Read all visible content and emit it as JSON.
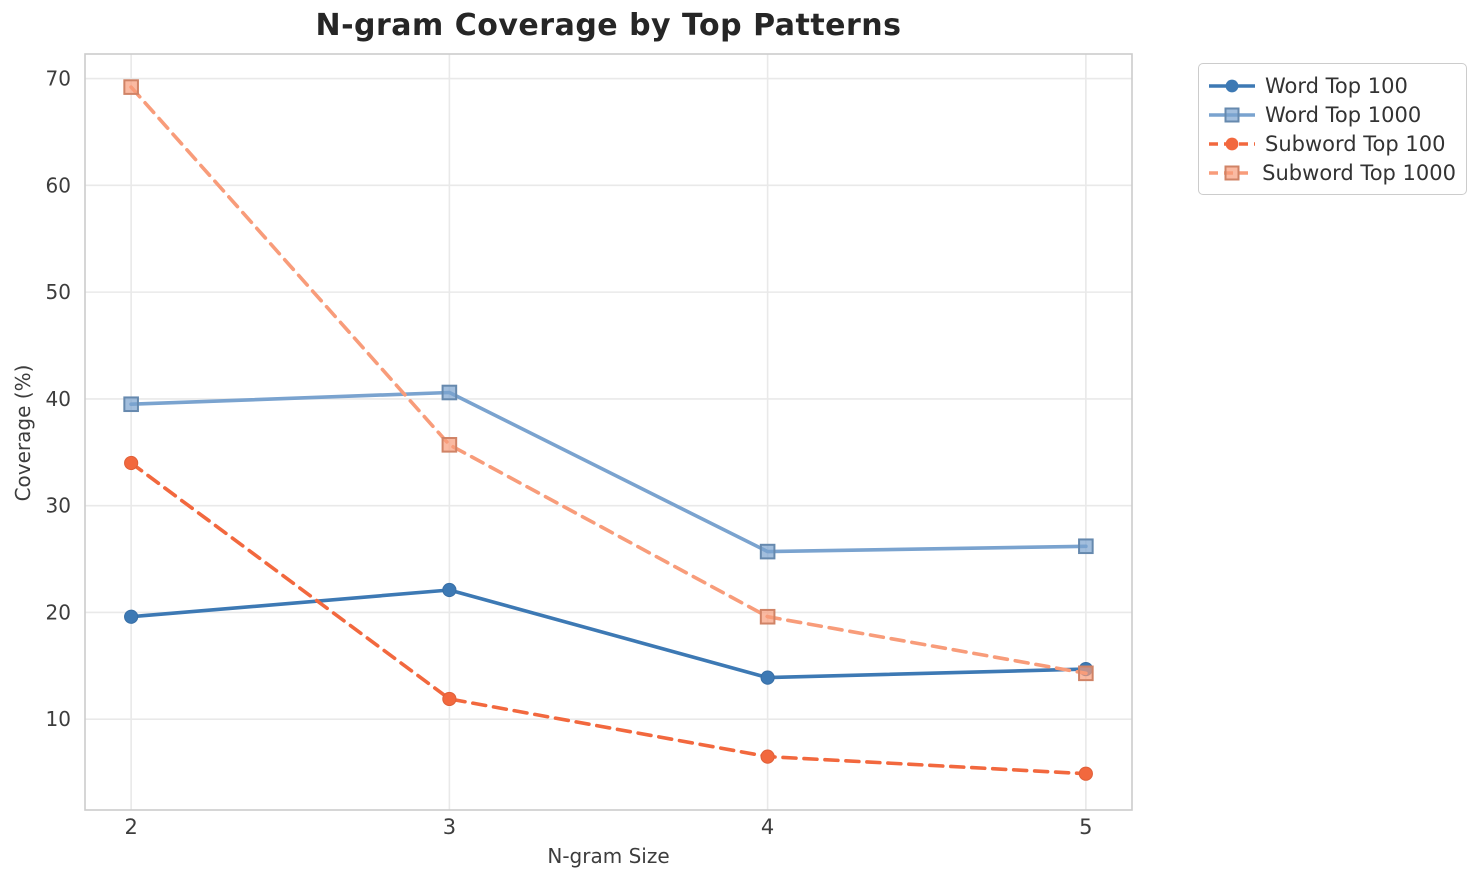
{
  "style": {
    "background": "#ffffff",
    "grid_color": "#e9e9e9",
    "spine_color": "#cccccc",
    "tick_text_color": "#3d3d3d",
    "title_color": "#262626",
    "legend_text_color": "#333333",
    "legend_border_color": "#cccccc"
  },
  "chart_data": {
    "type": "line",
    "title": "N-gram Coverage by Top Patterns",
    "xlabel": "N-gram Size",
    "ylabel": "Coverage (%)",
    "x": [
      2,
      3,
      4,
      5
    ],
    "xtick_labels": [
      "2",
      "3",
      "4",
      "5"
    ],
    "yticks": [
      10,
      20,
      30,
      40,
      50,
      60,
      70
    ],
    "ytick_labels": [
      "10",
      "20",
      "30",
      "40",
      "50",
      "60",
      "70"
    ],
    "xlim": [
      1.855,
      5.145
    ],
    "ylim": [
      1.5,
      72.3
    ],
    "grid": true,
    "legend_position": "outside-upper-right",
    "series": [
      {
        "name": "Word Top 100",
        "color": "#3d79b4",
        "marker": "circle",
        "line_style": "solid",
        "values": [
          19.6,
          22.1,
          13.9,
          14.7
        ]
      },
      {
        "name": "Word Top 1000",
        "color": "#7aa3cf",
        "marker": "square",
        "line_style": "solid",
        "values": [
          39.5,
          40.6,
          25.7,
          26.2
        ]
      },
      {
        "name": "Subword Top 100",
        "color": "#f2683e",
        "marker": "circle",
        "line_style": "dashed",
        "values": [
          34.0,
          11.9,
          6.5,
          4.9
        ]
      },
      {
        "name": "Subword Top 1000",
        "color": "#f89c7a",
        "marker": "square",
        "line_style": "dashed",
        "values": [
          69.2,
          35.7,
          19.6,
          14.3
        ]
      }
    ]
  }
}
